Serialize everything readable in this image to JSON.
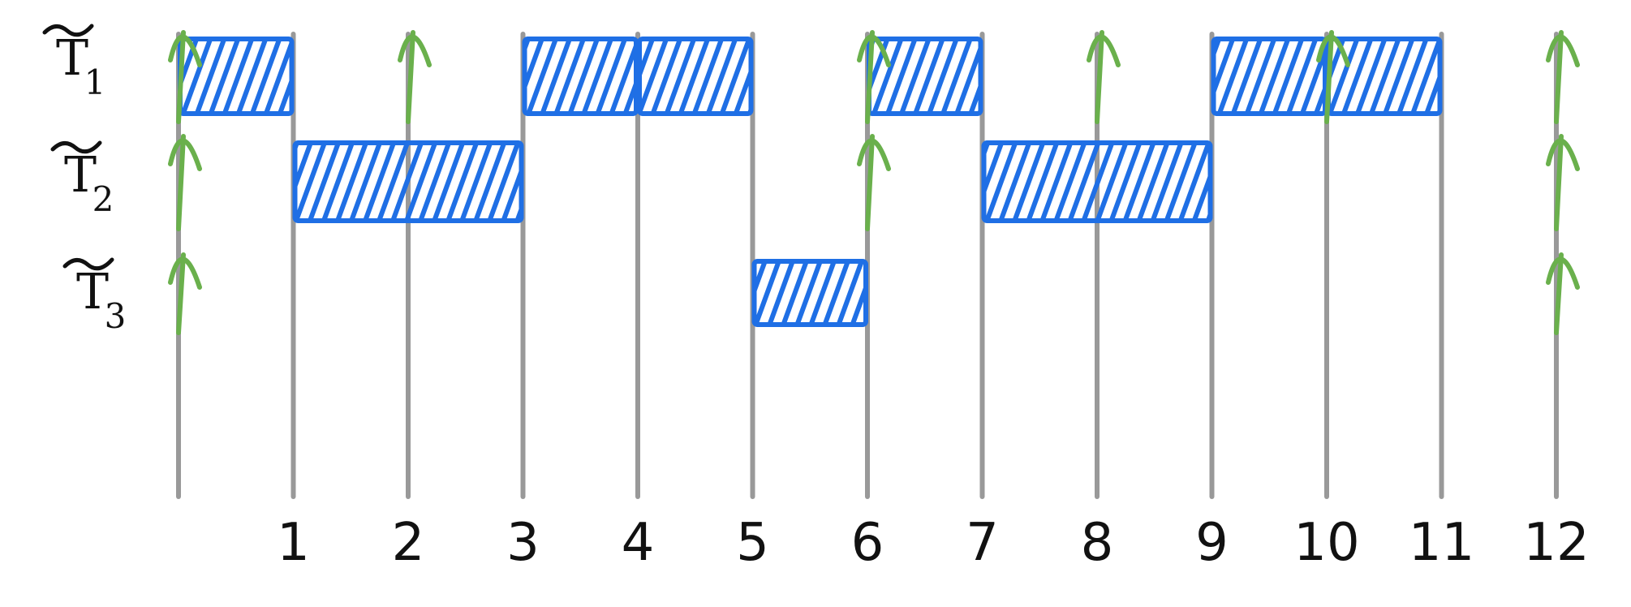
{
  "colors": {
    "gridline": "#999999",
    "job": "#1f6fe5",
    "release": "#6ab04c",
    "text": "#111111"
  },
  "time_axis": {
    "min": 0,
    "max": 12,
    "tick_labels": [
      "1",
      "2",
      "3",
      "4",
      "5",
      "6",
      "7",
      "8",
      "9",
      "10",
      "11",
      "12"
    ]
  },
  "tasks": [
    {
      "label": "T",
      "subscript": "1",
      "releases": [
        0,
        2,
        6,
        8,
        10,
        12
      ],
      "executions": [
        [
          0,
          1
        ],
        [
          3,
          4
        ],
        [
          4,
          5
        ],
        [
          6,
          7
        ],
        [
          9,
          10
        ],
        [
          10,
          11
        ]
      ]
    },
    {
      "label": "T",
      "subscript": "2",
      "releases": [
        0,
        6,
        12
      ],
      "executions": [
        [
          1,
          3
        ],
        [
          7,
          9
        ]
      ]
    },
    {
      "label": "T",
      "subscript": "3",
      "releases": [
        0,
        12
      ],
      "executions": [
        [
          5,
          6
        ]
      ]
    }
  ]
}
